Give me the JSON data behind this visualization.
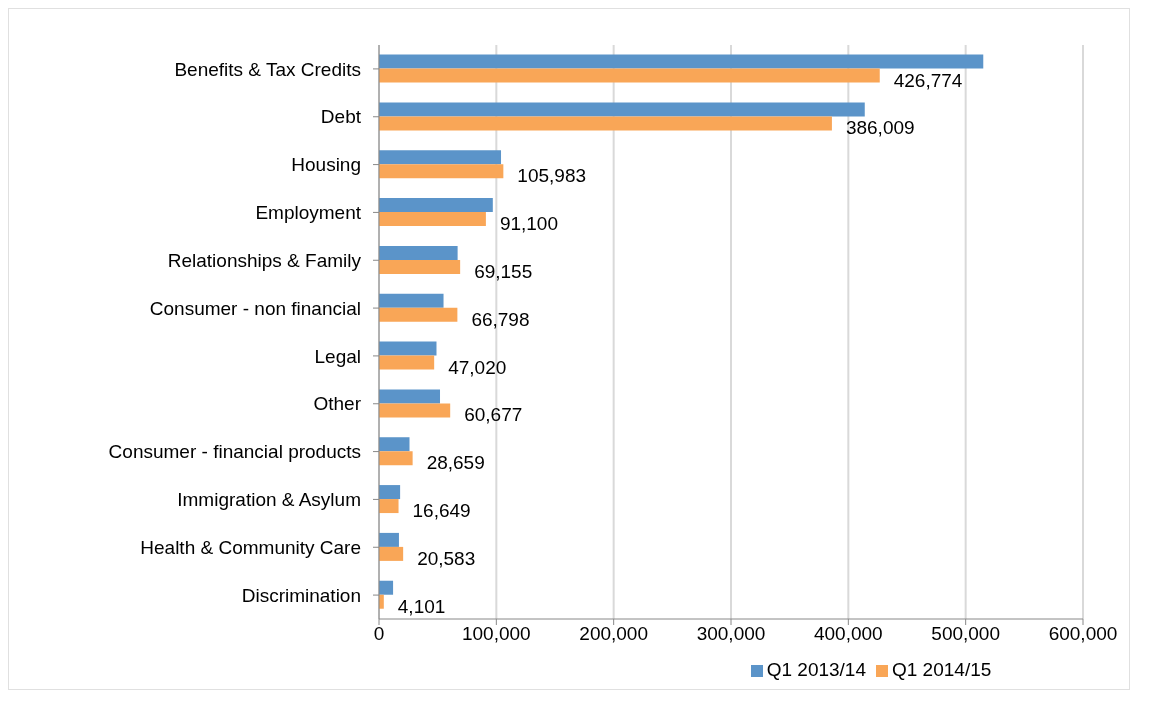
{
  "chart_data": {
    "type": "bar",
    "orientation": "horizontal",
    "categories": [
      "Benefits & Tax Credits",
      "Debt ",
      "Housing",
      "Employment",
      "Relationships & Family",
      "Consumer - non financial",
      "Legal",
      "Other",
      "Consumer - financial products",
      "Immigration & Asylum ",
      "Health & Community Care",
      "Discrimination"
    ],
    "series": [
      {
        "name": "Q1 2013/14",
        "color": "#5b94c9",
        "values": [
          515000,
          414000,
          104000,
          97000,
          67000,
          55000,
          49000,
          52000,
          26000,
          18000,
          17000,
          12000
        ]
      },
      {
        "name": "Q1 2014/15",
        "color": "#f9a657",
        "values": [
          426774,
          386009,
          105983,
          91100,
          69155,
          66798,
          47020,
          60677,
          28659,
          16649,
          20583,
          4101
        ],
        "value_labels": [
          "426,774",
          "386,009",
          "105,983",
          "91,100",
          "69,155",
          "66,798",
          "47,020",
          "60,677",
          "28,659",
          "16,649",
          "20,583",
          "4,101"
        ]
      }
    ],
    "xlim": [
      0,
      600000
    ],
    "xticks": [
      {
        "value": 0,
        "label": "0"
      },
      {
        "value": 100000,
        "label": "100,000"
      },
      {
        "value": 200000,
        "label": "200,000"
      },
      {
        "value": 300000,
        "label": "300,000"
      },
      {
        "value": 400000,
        "label": "400,000"
      },
      {
        "value": 500000,
        "label": "500,000"
      },
      {
        "value": 600000,
        "label": "600,000"
      }
    ],
    "grid": "x",
    "legend": "bottom"
  }
}
